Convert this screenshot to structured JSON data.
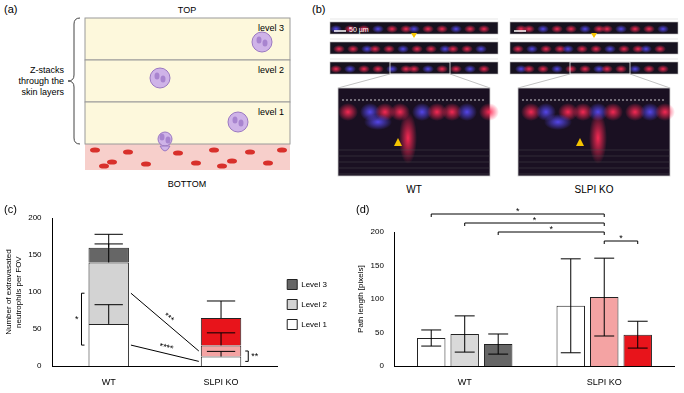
{
  "diagram": {
    "panel_label": "(a)",
    "top": "TOP",
    "bottom": "BOTTOM",
    "levels": [
      "level 3",
      "level 2",
      "level 1"
    ],
    "bracket": "Z-stacks through the skin layers"
  },
  "images": {
    "panel_label": "(b)",
    "scale_bar": "50 µm",
    "columns": [
      "WT",
      "SLPI KO"
    ]
  },
  "chart_data": [
    {
      "panel_label": "(c)",
      "type": "bar",
      "stacked": true,
      "grid": false,
      "legend": "right",
      "categories": [
        "WT",
        "SLPI KO"
      ],
      "y_label": "Number of extravasated neutrophils per FOV",
      "ylim": [
        0,
        200
      ],
      "yticks": [
        0,
        50,
        100,
        150,
        200
      ],
      "series": [
        {
          "name": "Level 1",
          "colors": [
            "#ffffff",
            "#ffffff"
          ],
          "values": [
            57,
            13
          ],
          "errors": [
            26,
            7
          ]
        },
        {
          "name": "Level 2",
          "colors": [
            "#d3d3d3",
            "#f4a3a3"
          ],
          "values": [
            83,
            15
          ],
          "errors": [
            25,
            17
          ]
        },
        {
          "name": "Level 3",
          "colors": [
            "#666666",
            "#e8141b"
          ],
          "values": [
            20,
            37
          ],
          "errors": [
            18,
            23
          ]
        }
      ],
      "annotations": [
        {
          "text": "*",
          "from": [
            "WT",
            "Level 1"
          ],
          "to": [
            "WT",
            "Level 2"
          ]
        },
        {
          "text": "***",
          "from": [
            "WT",
            "Level 2"
          ],
          "to": [
            "SLPI KO",
            "Level 2"
          ]
        },
        {
          "text": "****",
          "from": [
            "WT",
            "Level 1"
          ],
          "to": [
            "SLPI KO",
            "Level 1"
          ]
        },
        {
          "text": "**",
          "from": [
            "SLPI KO",
            "Level 1"
          ],
          "to": [
            "SLPI KO",
            "Level 2"
          ]
        }
      ]
    },
    {
      "panel_label": "(d)",
      "type": "bar",
      "grid": false,
      "categories": [
        "WT",
        "SLPI KO"
      ],
      "y_label": "Path length [pixels]",
      "ylim": [
        0,
        200
      ],
      "yticks": [
        0,
        50,
        100,
        150,
        200
      ],
      "series": [
        {
          "name": "Level 1",
          "colors": [
            "#ffffff",
            "#ffffff"
          ],
          "values": [
            42,
            90
          ],
          "errors": [
            12,
            70
          ]
        },
        {
          "name": "Level 2",
          "colors": [
            "#d9d9d9",
            "#f4a3a3"
          ],
          "values": [
            48,
            103
          ],
          "errors": [
            27,
            58
          ]
        },
        {
          "name": "Level 3",
          "colors": [
            "#666666",
            "#e8141b"
          ],
          "values": [
            33,
            47
          ],
          "errors": [
            15,
            20
          ]
        }
      ],
      "annotations": [
        {
          "text": "*",
          "from": [
            "WT",
            "Level 1"
          ],
          "to": [
            "SLPI KO",
            "Level 2"
          ]
        },
        {
          "text": "*",
          "from": [
            "WT",
            "Level 2"
          ],
          "to": [
            "SLPI KO",
            "Level 2"
          ]
        },
        {
          "text": "*",
          "from": [
            "WT",
            "Level 3"
          ],
          "to": [
            "SLPI KO",
            "Level 2"
          ]
        },
        {
          "text": "*",
          "from": [
            "SLPI KO",
            "Level 2"
          ],
          "to": [
            "SLPI KO",
            "Level 3"
          ]
        }
      ]
    }
  ]
}
